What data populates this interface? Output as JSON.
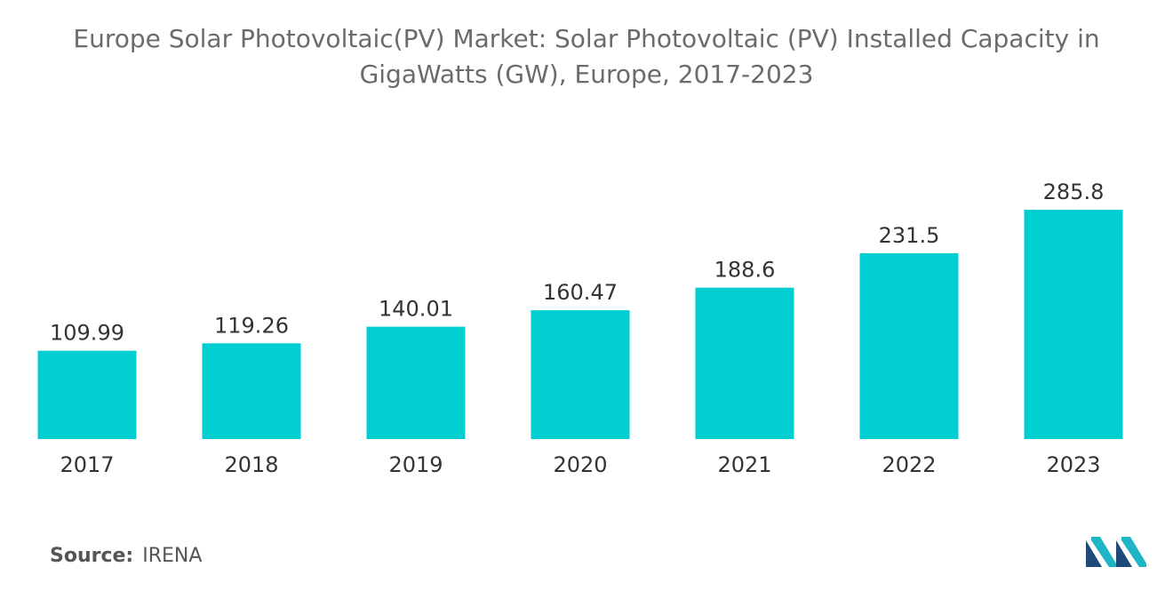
{
  "title_lines": [
    "Europe Solar Photovoltaic(PV) Market: Solar Photovoltaic (PV) Installed Capacity in",
    "GigaWatts (GW), Europe, 2017-2023"
  ],
  "source": {
    "label": "Source:",
    "value": "IRENA"
  },
  "logo": {
    "icon": "mordor-intelligence-logo-icon",
    "colors": [
      "#1e4a7a",
      "#1fb5c7"
    ]
  },
  "colors": {
    "bar": "#00ced1",
    "text": "#333333",
    "title": "#6b6b6b"
  },
  "chart_data": {
    "type": "bar",
    "title": "Europe Solar Photovoltaic(PV) Market: Solar Photovoltaic (PV) Installed Capacity in GigaWatts (GW), Europe, 2017-2023",
    "categories": [
      "2017",
      "2018",
      "2019",
      "2020",
      "2021",
      "2022",
      "2023"
    ],
    "values": [
      109.99,
      119.26,
      140.01,
      160.47,
      188.6,
      231.5,
      285.8
    ],
    "value_labels": [
      "109.99",
      "119.26",
      "140.01",
      "160.47",
      "188.6",
      "231.5",
      "285.8"
    ],
    "xlabel": "",
    "ylabel": "",
    "ylim": [
      0,
      285.8
    ],
    "grid": false,
    "legend": "none"
  }
}
